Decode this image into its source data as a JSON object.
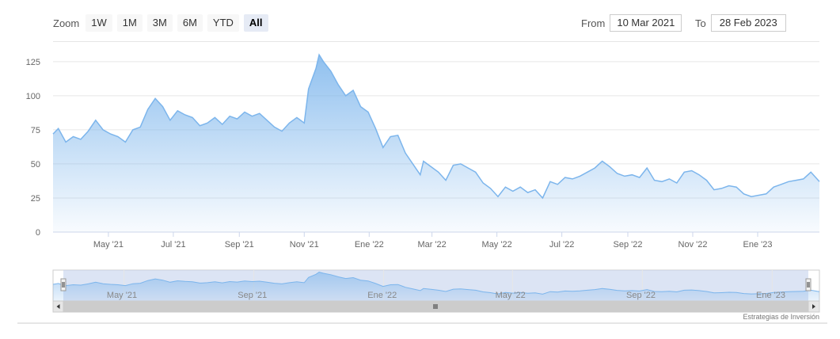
{
  "zoom": {
    "label": "Zoom",
    "buttons": [
      "1W",
      "1M",
      "3M",
      "6M",
      "YTD",
      "All"
    ],
    "active": "All"
  },
  "range": {
    "from_label": "From",
    "from_value": "10 Mar 2021",
    "to_label": "To",
    "to_value": "28 Feb 2023"
  },
  "credit": "Estrategias de Inversión",
  "colors": {
    "line": "#7cb5ec",
    "grid": "#e6e6e6",
    "navigator_mask": "#c4d2ec"
  },
  "chart_data": {
    "type": "area",
    "title": "",
    "xlabel": "",
    "ylabel": "",
    "ylim": [
      0,
      140
    ],
    "yticks": [
      "0",
      "25",
      "50",
      "75",
      "100",
      "125"
    ],
    "xticks": [
      "May '21",
      "Jul '21",
      "Sep '21",
      "Nov '21",
      "Ene '22",
      "Mar '22",
      "May '22",
      "Jul '22",
      "Sep '22",
      "Nov '22",
      "Ene '23"
    ],
    "x_range": [
      "2021-03-10",
      "2023-02-28"
    ],
    "grid": true,
    "series": [
      {
        "x": [
          "2021-03-10",
          "2021-03-15",
          "2021-03-22",
          "2021-03-29",
          "2021-04-05",
          "2021-04-12",
          "2021-04-19",
          "2021-04-26",
          "2021-05-03",
          "2021-05-10",
          "2021-05-17",
          "2021-05-24",
          "2021-05-31",
          "2021-06-07",
          "2021-06-14",
          "2021-06-21",
          "2021-06-28",
          "2021-07-05",
          "2021-07-12",
          "2021-07-19",
          "2021-07-26",
          "2021-08-02",
          "2021-08-09",
          "2021-08-16",
          "2021-08-23",
          "2021-08-30",
          "2021-09-06",
          "2021-09-13",
          "2021-09-20",
          "2021-09-27",
          "2021-10-04",
          "2021-10-11",
          "2021-10-18",
          "2021-10-25",
          "2021-11-01",
          "2021-11-05",
          "2021-11-12",
          "2021-11-15",
          "2021-11-19",
          "2021-11-26",
          "2021-12-03",
          "2021-12-10",
          "2021-12-17",
          "2021-12-24",
          "2021-12-31",
          "2022-01-07",
          "2022-01-14",
          "2022-01-21",
          "2022-01-28",
          "2022-02-04",
          "2022-02-11",
          "2022-02-18",
          "2022-02-21",
          "2022-02-28",
          "2022-03-07",
          "2022-03-14",
          "2022-03-21",
          "2022-03-28",
          "2022-04-04",
          "2022-04-11",
          "2022-04-18",
          "2022-04-25",
          "2022-05-02",
          "2022-05-09",
          "2022-05-16",
          "2022-05-23",
          "2022-05-30",
          "2022-06-06",
          "2022-06-13",
          "2022-06-20",
          "2022-06-27",
          "2022-07-04",
          "2022-07-11",
          "2022-07-18",
          "2022-07-25",
          "2022-08-01",
          "2022-08-08",
          "2022-08-15",
          "2022-08-22",
          "2022-08-29",
          "2022-09-05",
          "2022-09-12",
          "2022-09-19",
          "2022-09-26",
          "2022-10-03",
          "2022-10-10",
          "2022-10-17",
          "2022-10-24",
          "2022-10-31",
          "2022-11-07",
          "2022-11-14",
          "2022-11-21",
          "2022-11-28",
          "2022-12-05",
          "2022-12-12",
          "2022-12-19",
          "2022-12-26",
          "2023-01-02",
          "2023-01-09",
          "2023-01-16",
          "2023-01-23",
          "2023-01-30",
          "2023-02-06",
          "2023-02-13",
          "2023-02-20",
          "2023-02-28"
        ],
        "values": [
          72,
          76,
          66,
          70,
          68,
          74,
          82,
          75,
          72,
          70,
          66,
          75,
          77,
          90,
          98,
          92,
          82,
          89,
          86,
          84,
          78,
          80,
          84,
          79,
          85,
          83,
          88,
          85,
          87,
          82,
          77,
          74,
          80,
          84,
          80,
          105,
          120,
          130,
          125,
          118,
          108,
          100,
          104,
          92,
          88,
          76,
          62,
          70,
          71,
          58,
          50,
          42,
          52,
          48,
          44,
          38,
          49,
          50,
          47,
          44,
          36,
          32,
          26,
          33,
          30,
          33,
          29,
          31,
          25,
          37,
          35,
          40,
          39,
          41,
          44,
          47,
          52,
          48,
          43,
          41,
          42,
          40,
          47,
          38,
          37,
          39,
          36,
          44,
          45,
          42,
          38,
          31,
          32,
          34,
          33,
          28,
          26,
          27,
          28,
          33,
          35,
          37,
          38,
          39,
          44,
          37
        ]
      }
    ]
  }
}
